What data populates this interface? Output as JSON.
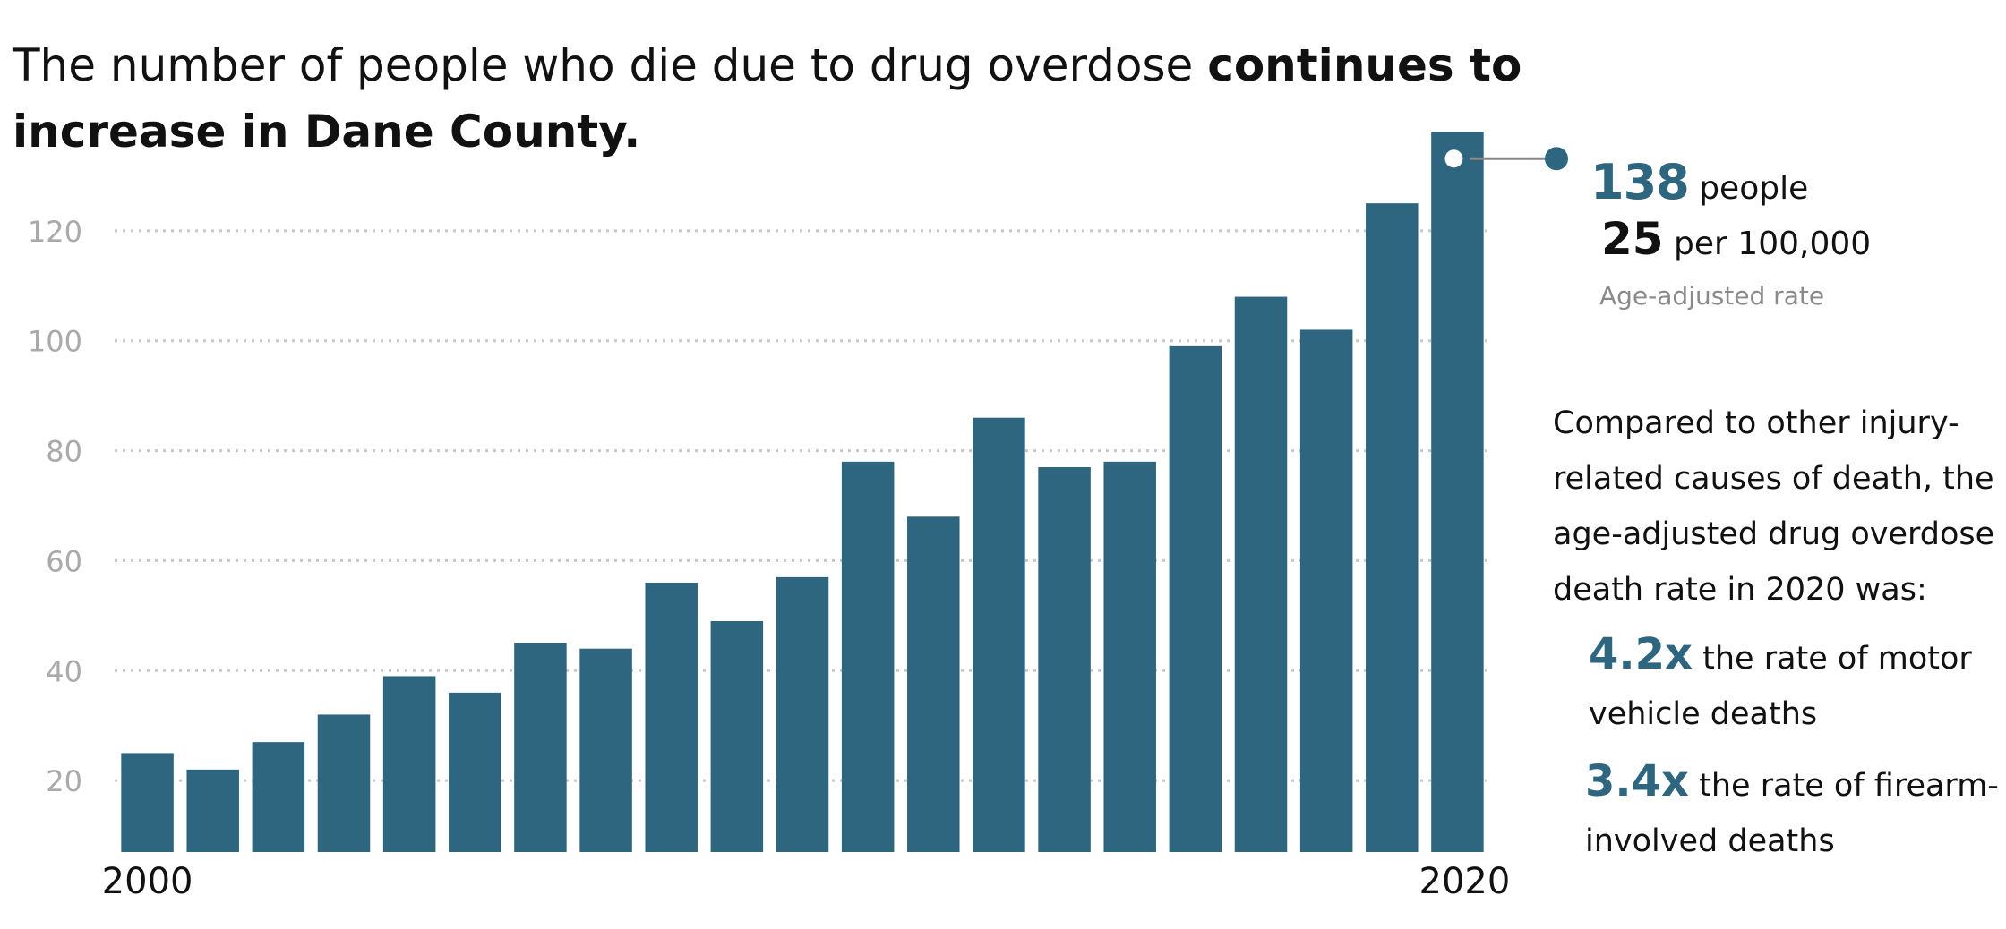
{
  "title": {
    "prefix": "The number of people who die due to drug overdose ",
    "emphasis_line1": "continues to",
    "emphasis_line2": "increase in Dane County."
  },
  "chart_data": {
    "type": "bar",
    "categories": [
      "2000",
      "2001",
      "2002",
      "2003",
      "2004",
      "2005",
      "2006",
      "2007",
      "2008",
      "2009",
      "2010",
      "2011",
      "2012",
      "2013",
      "2014",
      "2015",
      "2016",
      "2017",
      "2018",
      "2019",
      "2020"
    ],
    "values": [
      25,
      22,
      27,
      32,
      39,
      36,
      45,
      44,
      56,
      49,
      57,
      78,
      68,
      86,
      77,
      78,
      99,
      108,
      102,
      125,
      138
    ],
    "x_tick_labels": [
      "2000",
      "2020"
    ],
    "y_ticks": [
      20,
      40,
      60,
      80,
      100,
      120
    ],
    "ylim": [
      7,
      133
    ],
    "grid": "dotted horizontal",
    "bar_color": "#2e6680",
    "grid_color": "#c8c8c8",
    "tick_color": "#aaaaaa",
    "title": "",
    "xlabel": "",
    "ylabel": ""
  },
  "callout": {
    "count": "138",
    "count_unit": "people",
    "rate": "25",
    "rate_unit": "per 100,000",
    "rate_note": "Age-adjusted rate"
  },
  "comparison": {
    "intro": "Compared to other injury-related causes of death, the age-adjusted drug overdose death rate in 2020 was:",
    "fact1_multiplier": "4.2x",
    "fact1_text": "the rate of motor vehicle deaths",
    "fact2_multiplier": "3.4x",
    "fact2_text": "the rate of firearm-involved deaths"
  },
  "colors": {
    "accent": "#2e6680",
    "muted": "#8a8a8a"
  }
}
